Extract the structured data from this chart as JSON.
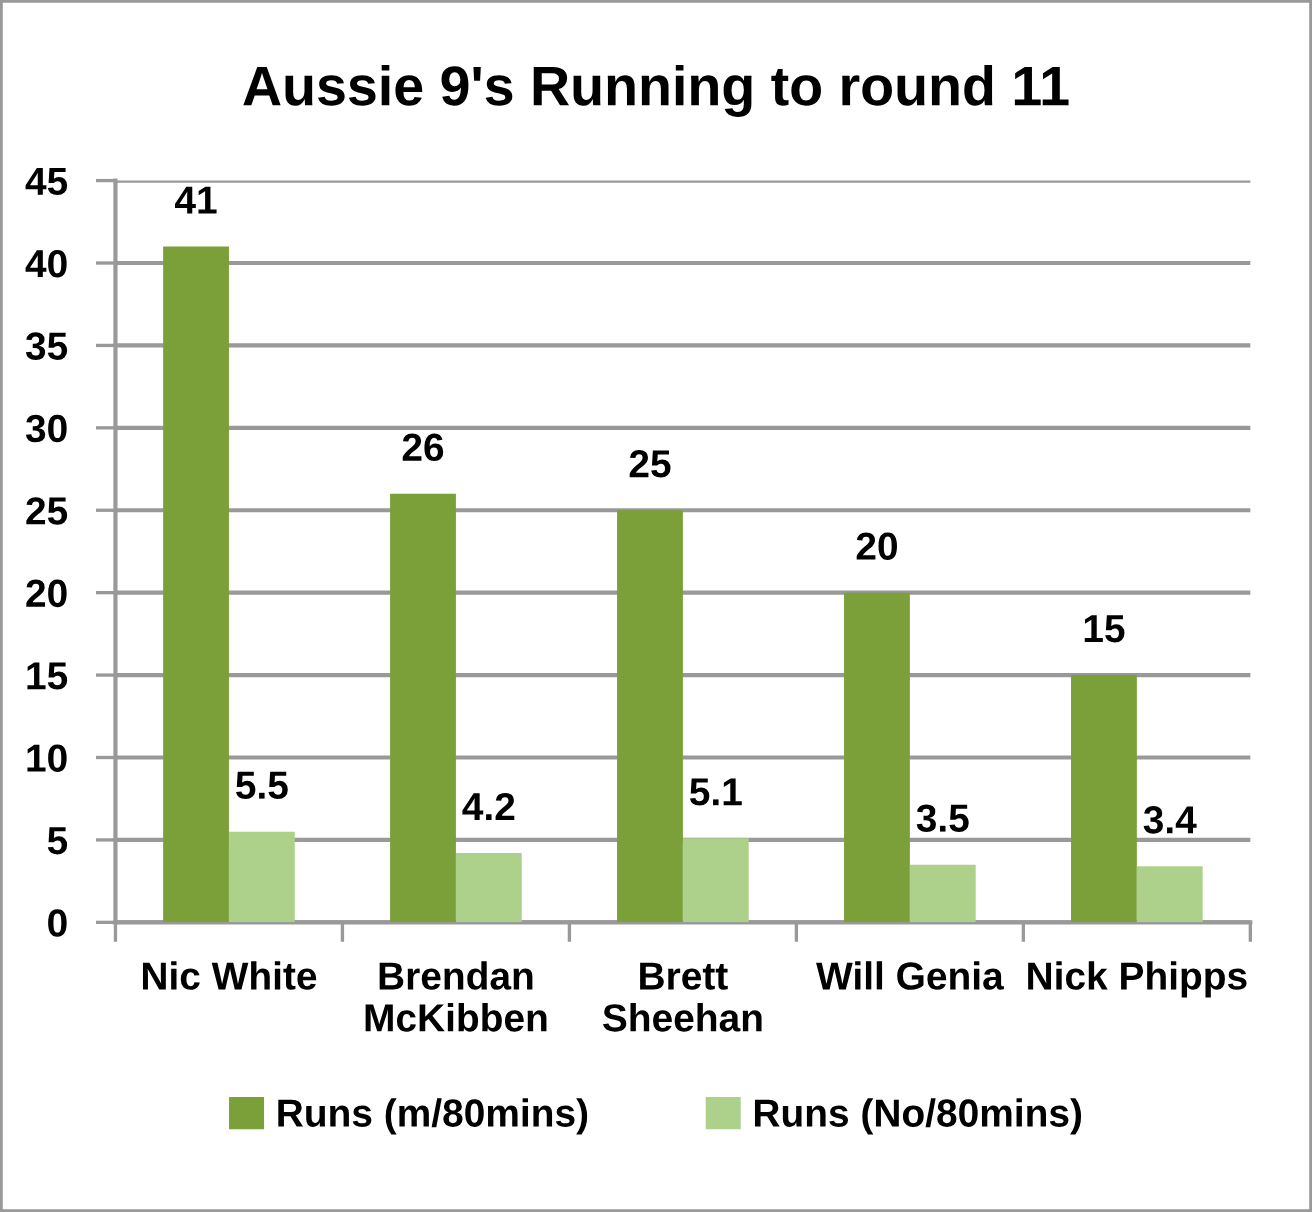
{
  "chart_data": {
    "type": "bar",
    "title": "Aussie 9's Running to round 11",
    "categories": [
      "Nic White",
      "Brendan\nMcKibben",
      "Brett\nSheehan",
      "Will Genia",
      "Nick Phipps"
    ],
    "series": [
      {
        "name": "Runs (m/80mins)",
        "color": "#7ba03a",
        "values": [
          41,
          26,
          25,
          20,
          15
        ]
      },
      {
        "name": "Runs (No/80mins)",
        "color": "#add08a",
        "values": [
          5.5,
          4.2,
          5.1,
          3.5,
          3.4
        ]
      }
    ],
    "ylim": [
      0,
      45
    ],
    "yticks": [
      0,
      5,
      10,
      15,
      20,
      25,
      30,
      35,
      40,
      45
    ],
    "grid": "y",
    "legend": "bottom",
    "data_labels": true
  }
}
